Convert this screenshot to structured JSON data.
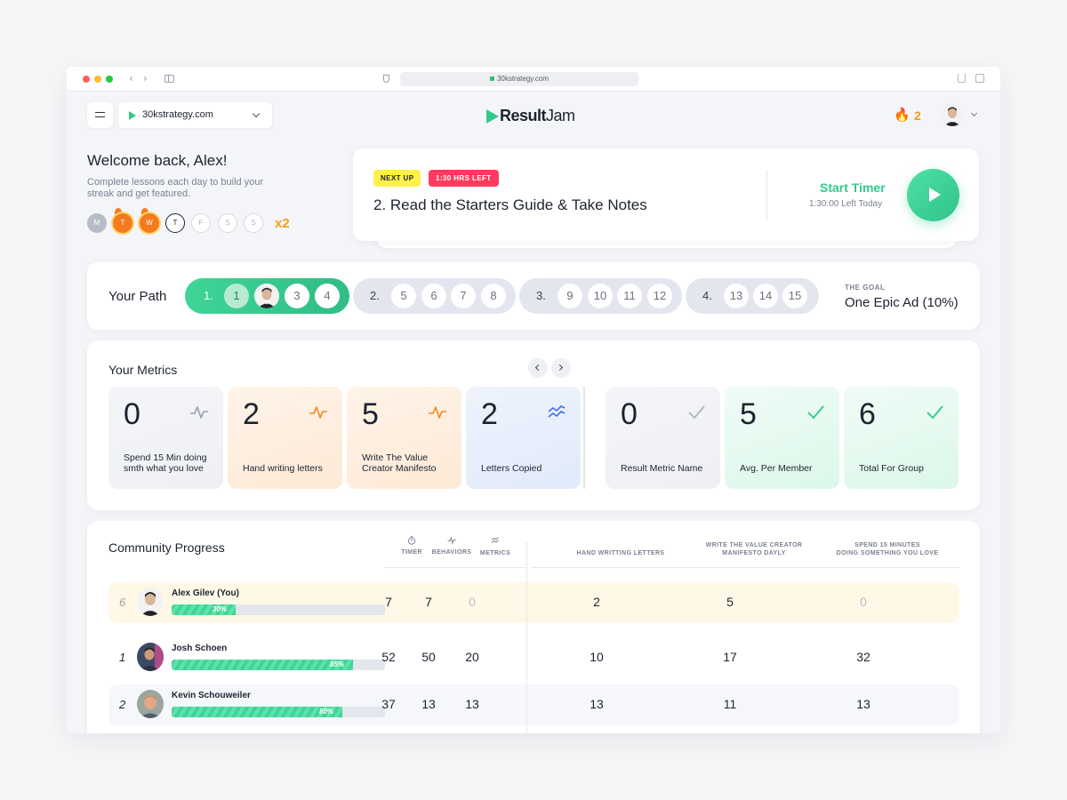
{
  "browser": {
    "url": "30kstrategy.com"
  },
  "header": {
    "site_selector": "30kstrategy.com",
    "logo_part1": "Result",
    "logo_part2": "Jam",
    "streak_count": "2"
  },
  "welcome": {
    "title": "Welcome back, Alex!",
    "subtitle": "Complete lessons each day to build your streak and get featured.",
    "days": [
      {
        "letter": "M",
        "state": "done"
      },
      {
        "letter": "T",
        "state": "fire"
      },
      {
        "letter": "W",
        "state": "fire"
      },
      {
        "letter": "T",
        "state": "today"
      },
      {
        "letter": "F",
        "state": "future"
      },
      {
        "letter": "S",
        "state": "future"
      },
      {
        "letter": "S",
        "state": "future"
      }
    ],
    "multiplier": "x2"
  },
  "next_up": {
    "badge": "NEXT UP",
    "time_badge": "1:30 HRS LEFT",
    "title": "2. Read the Starters Guide & Take Notes",
    "timer_label": "Start Timer",
    "timer_left": "1:30:00 Left Today"
  },
  "path": {
    "label": "Your Path",
    "groups": [
      {
        "head": "1.",
        "steps": [
          "1",
          "",
          "3",
          "4"
        ]
      },
      {
        "head": "2.",
        "steps": [
          "5",
          "6",
          "7",
          "8"
        ]
      },
      {
        "head": "3.",
        "steps": [
          "9",
          "10",
          "11",
          "12"
        ]
      },
      {
        "head": "4.",
        "steps": [
          "13",
          "14",
          "15"
        ]
      }
    ],
    "goal_caption": "THE GOAL",
    "goal_value": "One Epic Ad (10%)"
  },
  "metrics": {
    "title": "Your Metrics",
    "tiles": [
      {
        "value": "0",
        "label": "Spend 15 Min doing smth what you love",
        "icon": "pulse-icon",
        "color": "#9aa0ab"
      },
      {
        "value": "2",
        "label": "Hand writing letters",
        "icon": "pulse-icon",
        "color": "#f08a24"
      },
      {
        "value": "5",
        "label": "Write The Value Creator Manifesto",
        "icon": "pulse-icon",
        "color": "#f08a24"
      },
      {
        "value": "2",
        "label": "Letters Copied",
        "icon": "trend-icon",
        "color": "#3b6fe0"
      },
      {
        "value": "0",
        "label": "Result Metric Name",
        "icon": "check-icon",
        "color": "#b0b5be"
      },
      {
        "value": "5",
        "label": "Avg. Per Member",
        "icon": "check-icon",
        "color": "#2ecc8a"
      },
      {
        "value": "6",
        "label": "Total For Group",
        "icon": "check-icon",
        "color": "#2ecc8a"
      }
    ]
  },
  "community": {
    "title": "Community Progress",
    "columns": {
      "timer": "TIMER",
      "behaviors": "BEHAVIORS",
      "metrics": "METRICS",
      "c1": "HAND WRITTING LETTERS",
      "c2a": "WRITE THE VALUE CREATOR",
      "c2b": "MANIFESTO DAYLY",
      "c3a": "SPEND 15 MINUTES",
      "c3b": "DOING SOMETHING YOU LOVE"
    },
    "rows": [
      {
        "rank": "6",
        "name": "Alex Gilev (You)",
        "progress": 0.3,
        "pct_label": "30%",
        "timer": "7",
        "behaviors": "7",
        "metrics": "0",
        "c1": "2",
        "c2": "5",
        "c3": "0"
      },
      {
        "rank": "1",
        "name": "Josh Schoen",
        "progress": 0.85,
        "pct_label": "85%",
        "timer": "52",
        "behaviors": "50",
        "metrics": "20",
        "c1": "10",
        "c2": "17",
        "c3": "32"
      },
      {
        "rank": "2",
        "name": "Kevin Schouweiler",
        "progress": 0.8,
        "pct_label": "80%",
        "timer": "37",
        "behaviors": "13",
        "metrics": "13",
        "c1": "13",
        "c2": "11",
        "c3": "13"
      }
    ]
  },
  "colors": {
    "accent_green": "#2ecc8a",
    "streak_orange": "#f59c1a",
    "badge_yellow": "#fff04a",
    "badge_red": "#ff3a5e"
  }
}
